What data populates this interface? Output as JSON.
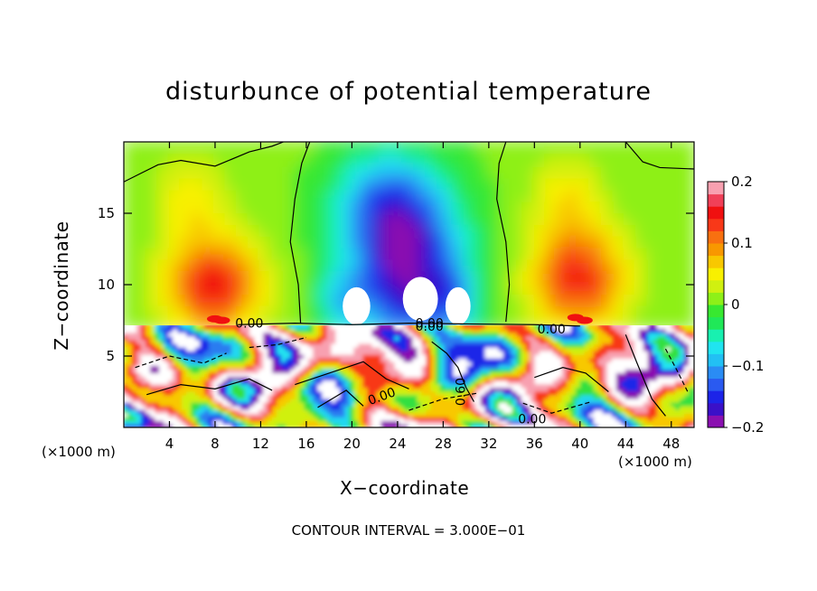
{
  "chart_data": {
    "type": "heatmap",
    "title": "disturbunce of potential temperature",
    "xlabel": "X−coordinate",
    "ylabel": "Z−coordinate",
    "x_unit_left": "(×1000 m)",
    "x_unit_right": "(×1000 m)",
    "footer": "CONTOUR INTERVAL = 3.000E−01",
    "xlim": [
      0,
      50
    ],
    "ylim": [
      0,
      20
    ],
    "x_ticks": [
      4,
      8,
      12,
      16,
      20,
      24,
      28,
      32,
      36,
      40,
      44,
      48
    ],
    "y_ticks": [
      5,
      10,
      15
    ],
    "colorbar": {
      "range": [
        -0.2,
        0.2
      ],
      "tick_values": [
        0.2,
        0.1,
        0,
        -0.1,
        -0.2
      ],
      "tick_labels": [
        "0.2",
        "0.1",
        "0",
        "−0.1",
        "−0.2"
      ],
      "colors": [
        "#8a10b0",
        "#3a10c8",
        "#1c24e8",
        "#2a5af0",
        "#2a8cf4",
        "#22c0f4",
        "#20e4f0",
        "#18f0b0",
        "#20e858",
        "#38e830",
        "#8ef018",
        "#d0f010",
        "#f8f000",
        "#f8c800",
        "#f89800",
        "#f87010",
        "#f83818",
        "#f01010",
        "#f04058",
        "#f8a0b0"
      ]
    },
    "contour_labels": [
      "0.00",
      "0.00",
      "0.00",
      "0.00",
      "0.00",
      "0.60",
      "0.00"
    ],
    "grid": false
  }
}
